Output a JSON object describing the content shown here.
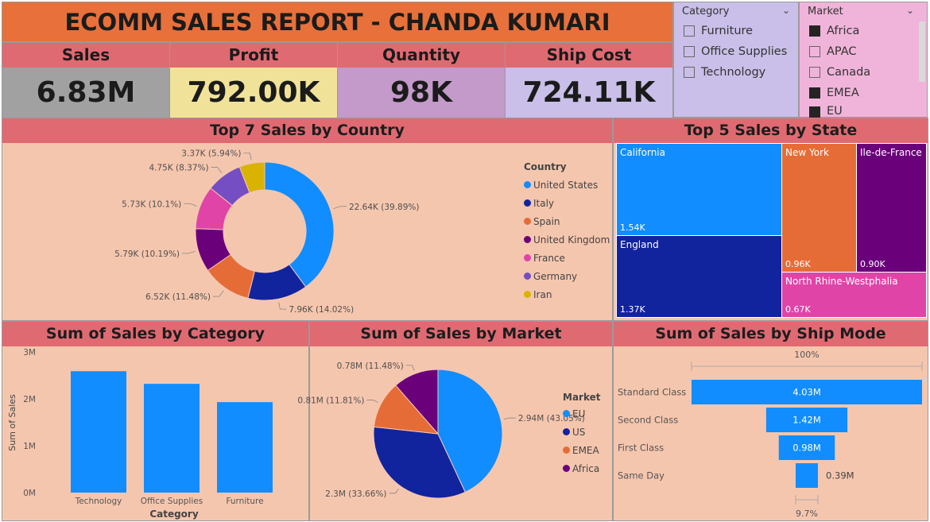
{
  "title": "ECOMM SALES REPORT - CHANDA KUMARI",
  "kpis": [
    {
      "label": "Sales",
      "value": "6.83M",
      "color": "#a1a1a1"
    },
    {
      "label": "Profit",
      "value": "792.00K",
      "color": "#f1e29a"
    },
    {
      "label": "Quantity",
      "value": "98K",
      "color": "#c39ac9"
    },
    {
      "label": "Ship Cost",
      "value": "724.11K",
      "color": "#c9bfe8"
    }
  ],
  "category_slicer": {
    "header": "Category",
    "items": [
      {
        "label": "Furniture",
        "checked": false
      },
      {
        "label": "Office Supplies",
        "checked": false
      },
      {
        "label": "Technology",
        "checked": false
      }
    ]
  },
  "market_slicer": {
    "header": "Market",
    "items": [
      {
        "label": "Africa",
        "checked": true
      },
      {
        "label": "APAC",
        "checked": false
      },
      {
        "label": "Canada",
        "checked": false
      },
      {
        "label": "EMEA",
        "checked": true
      },
      {
        "label": "EU",
        "checked": true
      }
    ]
  },
  "country_panel": {
    "title": "Top 7 Sales by Country",
    "legend_title": "Country"
  },
  "state_panel": {
    "title": "Top 5 Sales by State"
  },
  "category_panel": {
    "title": "Sum of Sales by Category"
  },
  "market_panel": {
    "title": "Sum of Sales by Market",
    "legend_title": "Market"
  },
  "shipmode_panel": {
    "title": "Sum of Sales by Ship Mode"
  },
  "chart_data": [
    {
      "type": "pie",
      "variant": "donut",
      "title": "Top 7 Sales by Country",
      "legend_title": "Country",
      "legend_position": "right",
      "categories": [
        "United States",
        "Italy",
        "Spain",
        "United Kingdom",
        "France",
        "Germany",
        "Iran"
      ],
      "values": [
        22.64,
        7.96,
        6.52,
        5.79,
        5.73,
        4.75,
        3.37
      ],
      "unit": "K",
      "data_labels": [
        "22.64K (39.89%)",
        "7.96K (14.02%)",
        "6.52K (11.48%)",
        "5.79K (10.19%)",
        "5.73K (10.1%)",
        "4.75K (8.37%)",
        "3.37K (5.94%)"
      ],
      "colors": [
        "#118dff",
        "#12239e",
        "#e66c37",
        "#6b007b",
        "#e044a7",
        "#744ec2",
        "#d9b300"
      ]
    },
    {
      "type": "treemap",
      "title": "Top 5 Sales by State",
      "categories": [
        "California",
        "England",
        "New York",
        "Ile-de-France",
        "North Rhine-Westphalia"
      ],
      "values": [
        1.54,
        1.37,
        0.96,
        0.9,
        0.67
      ],
      "unit": "K",
      "data_labels": [
        "1.54K",
        "1.37K",
        "0.96K",
        "0.90K",
        "0.67K"
      ],
      "colors": [
        "#118dff",
        "#12239e",
        "#e66c37",
        "#6b007b",
        "#e044a7"
      ]
    },
    {
      "type": "bar",
      "title": "Sum of Sales by Category",
      "categories": [
        "Technology",
        "Office Supplies",
        "Furniture"
      ],
      "values": [
        2.59,
        2.32,
        1.93
      ],
      "unit": "M",
      "xlabel": "Category",
      "ylabel": "Sum of Sales",
      "ylim": [
        0,
        3
      ],
      "yticks": [
        0,
        1,
        2,
        3
      ],
      "ytick_labels": [
        "0M",
        "1M",
        "2M",
        "3M"
      ],
      "grid": false,
      "color": "#118dff"
    },
    {
      "type": "pie",
      "title": "Sum of Sales by Market",
      "legend_title": "Market",
      "legend_position": "right",
      "categories": [
        "EU",
        "US",
        "EMEA",
        "Africa"
      ],
      "values": [
        2.94,
        2.3,
        0.81,
        0.78
      ],
      "unit": "M",
      "data_labels": [
        "2.94M (43.05%)",
        "2.3M (33.66%)",
        "0.81M (11.81%)",
        "0.78M (11.48%)"
      ],
      "colors": [
        "#118dff",
        "#12239e",
        "#e66c37",
        "#6b007b"
      ]
    },
    {
      "type": "funnel",
      "title": "Sum of Sales by Ship Mode",
      "categories": [
        "Standard Class",
        "Second Class",
        "First Class",
        "Same Day"
      ],
      "values": [
        4.03,
        1.42,
        0.98,
        0.39
      ],
      "unit": "M",
      "data_labels": [
        "4.03M",
        "1.42M",
        "0.98M",
        "0.39M"
      ],
      "top_percent_label": "100%",
      "bottom_percent_label": "9.7%",
      "color": "#118dff"
    }
  ]
}
